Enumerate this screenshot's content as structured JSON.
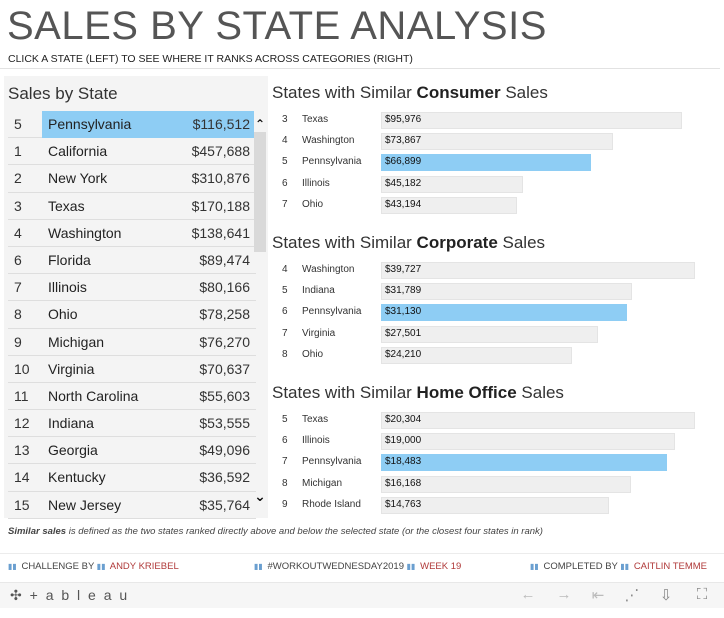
{
  "header": {
    "title": "SALES BY STATE ANALYSIS",
    "subtitle": "CLICK A STATE (LEFT) TO SEE WHERE IT RANKS ACROSS CATEGORIES (RIGHT)"
  },
  "left": {
    "title": "Sales by State",
    "rows": [
      {
        "rank": "5",
        "name": "Pennsylvania",
        "value": "$116,512",
        "selected": true
      },
      {
        "rank": "1",
        "name": "California",
        "value": "$457,688"
      },
      {
        "rank": "2",
        "name": "New York",
        "value": "$310,876"
      },
      {
        "rank": "3",
        "name": "Texas",
        "value": "$170,188"
      },
      {
        "rank": "4",
        "name": "Washington",
        "value": "$138,641"
      },
      {
        "rank": "6",
        "name": "Florida",
        "value": "$89,474"
      },
      {
        "rank": "7",
        "name": "Illinois",
        "value": "$80,166"
      },
      {
        "rank": "8",
        "name": "Ohio",
        "value": "$78,258"
      },
      {
        "rank": "9",
        "name": "Michigan",
        "value": "$76,270"
      },
      {
        "rank": "10",
        "name": "Virginia",
        "value": "$70,637"
      },
      {
        "rank": "11",
        "name": "North Carolina",
        "value": "$55,603"
      },
      {
        "rank": "12",
        "name": "Indiana",
        "value": "$53,555"
      },
      {
        "rank": "13",
        "name": "Georgia",
        "value": "$49,096"
      },
      {
        "rank": "14",
        "name": "Kentucky",
        "value": "$36,592"
      },
      {
        "rank": "15",
        "name": "New Jersey",
        "value": "$35,764"
      }
    ],
    "scroll_up_icon": "chevron-up-icon",
    "scroll_down_icon": "chevron-down-icon"
  },
  "categories": [
    {
      "title_pre": "States with Similar ",
      "title_bold": "Consumer",
      "title_post": " Sales",
      "max": 100000,
      "rows": [
        {
          "rank": "3",
          "name": "Texas",
          "label": "$95,976",
          "value": 95976
        },
        {
          "rank": "4",
          "name": "Washington",
          "label": "$73,867",
          "value": 73867
        },
        {
          "rank": "5",
          "name": "Pennsylvania",
          "label": "$66,899",
          "value": 66899,
          "selected": true
        },
        {
          "rank": "6",
          "name": "Illinois",
          "label": "$45,182",
          "value": 45182
        },
        {
          "rank": "7",
          "name": "Ohio",
          "label": "$43,194",
          "value": 43194
        }
      ]
    },
    {
      "title_pre": "States with Similar ",
      "title_bold": "Corporate",
      "title_post": " Sales",
      "max": 39727,
      "rows": [
        {
          "rank": "4",
          "name": "Washington",
          "label": "$39,727",
          "value": 39727
        },
        {
          "rank": "5",
          "name": "Indiana",
          "label": "$31,789",
          "value": 31789
        },
        {
          "rank": "6",
          "name": "Pennsylvania",
          "label": "$31,130",
          "value": 31130,
          "selected": true
        },
        {
          "rank": "7",
          "name": "Virginia",
          "label": "$27,501",
          "value": 27501
        },
        {
          "rank": "8",
          "name": "Ohio",
          "label": "$24,210",
          "value": 24210
        }
      ]
    },
    {
      "title_pre": "States with Similar ",
      "title_bold": "Home Office",
      "title_post": " Sales",
      "max": 20304,
      "rows": [
        {
          "rank": "5",
          "name": "Texas",
          "label": "$20,304",
          "value": 20304
        },
        {
          "rank": "6",
          "name": "Illinois",
          "label": "$19,000",
          "value": 19000
        },
        {
          "rank": "7",
          "name": "Pennsylvania",
          "label": "$18,483",
          "value": 18483,
          "selected": true
        },
        {
          "rank": "8",
          "name": "Michigan",
          "label": "$16,168",
          "value": 16168
        },
        {
          "rank": "9",
          "name": "Rhode Island",
          "label": "$14,763",
          "value": 14763
        }
      ]
    }
  ],
  "footnote": {
    "bold": "Similar sales",
    "rest": " is defined as the two states ranked directly above and below the selected state (or the closest four states in rank)"
  },
  "credits": {
    "challenge_label": "CHALLENGE BY",
    "challenge_name": "ANDY KRIEBEL",
    "hashtag": "#WORKOUTWEDNESDAY2019",
    "week": "WEEK 19",
    "completed_label": "COMPLETED BY",
    "completed_name": "CAITLIN TEMME",
    "mark": "▮▮"
  },
  "toolbar": {
    "logo": "+ a b l e a u",
    "logo_mark": "✣",
    "icons": [
      "undo-icon",
      "redo-icon",
      "revert-icon",
      "share-icon",
      "download-icon",
      "fullscreen-icon"
    ],
    "glyphs": [
      "←",
      "→",
      "⇤",
      "⋰",
      "⇩",
      "⛶"
    ]
  },
  "colors": {
    "selected": "#8ecdf4",
    "bar_bg": "#efefef",
    "accent_red": "#b03a3a"
  }
}
